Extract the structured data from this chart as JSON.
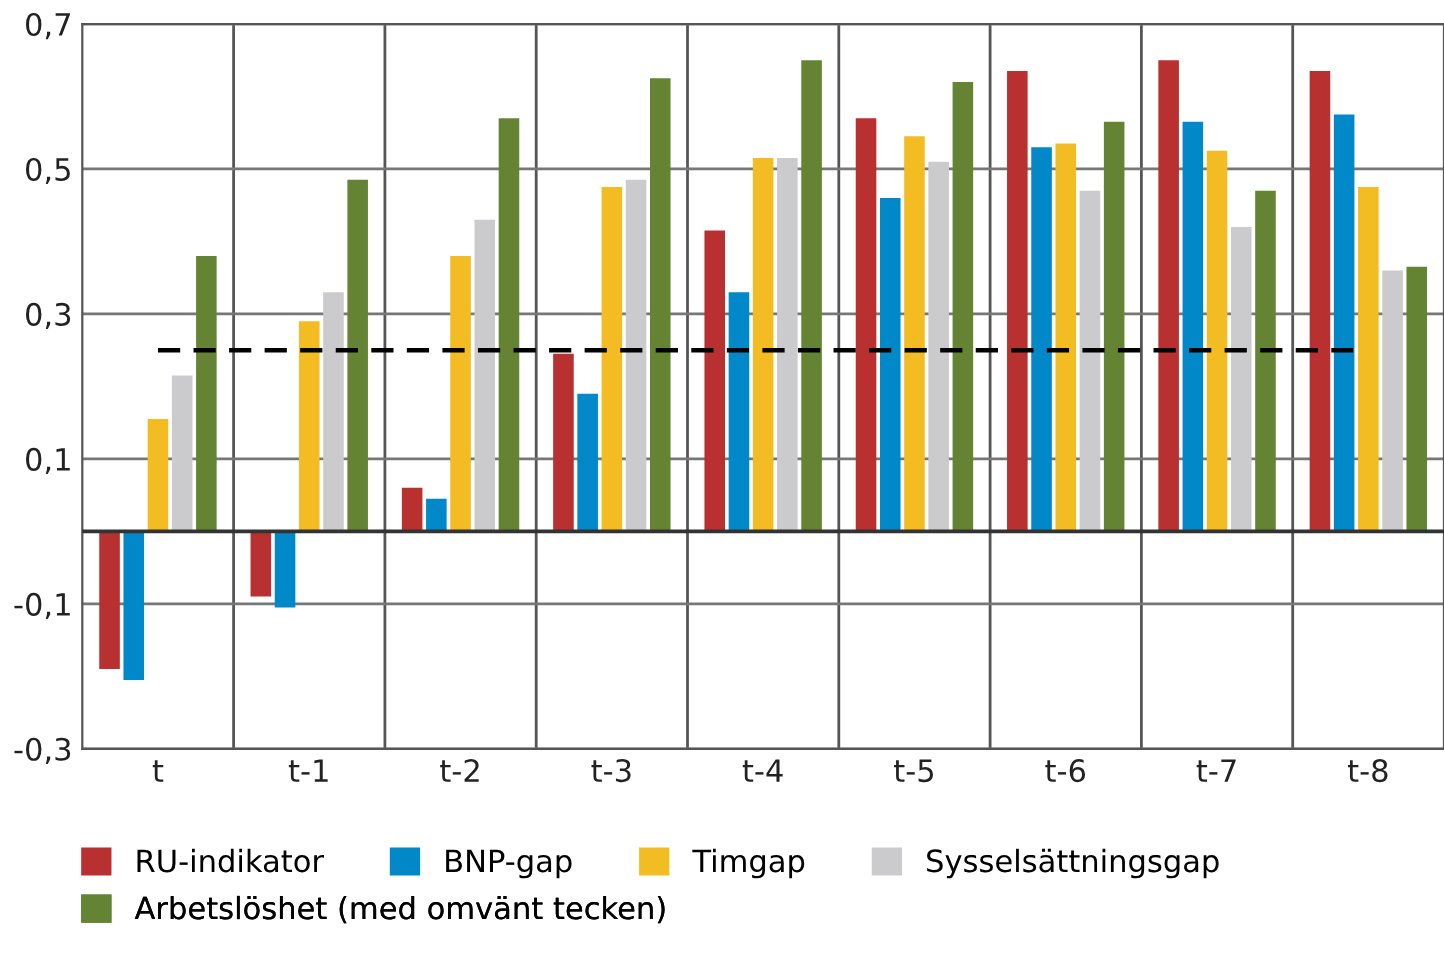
{
  "chart_data": {
    "type": "bar",
    "categories": [
      "t",
      "t-1",
      "t-2",
      "t-3",
      "t-4",
      "t-5",
      "t-6",
      "t-7",
      "t-8"
    ],
    "series": [
      {
        "name": "RU-indikator",
        "color": "#b83030",
        "values": [
          -0.19,
          -0.09,
          0.06,
          0.245,
          0.415,
          0.57,
          0.635,
          0.65,
          0.635
        ]
      },
      {
        "name": "BNP-gap",
        "color": "#0088c8",
        "values": [
          -0.205,
          -0.105,
          0.045,
          0.19,
          0.33,
          0.46,
          0.53,
          0.565,
          0.575
        ]
      },
      {
        "name": "Timgap",
        "color": "#f3bc22",
        "values": [
          0.155,
          0.29,
          0.38,
          0.475,
          0.515,
          0.545,
          0.535,
          0.525,
          0.475
        ]
      },
      {
        "name": "Sysselsättningsgap",
        "color": "#cbcbcd",
        "values": [
          0.215,
          0.33,
          0.43,
          0.485,
          0.515,
          0.51,
          0.47,
          0.42,
          0.36
        ]
      },
      {
        "name": "Arbetslöshet (med omvänt tecken)",
        "color": "#648434",
        "values": [
          0.38,
          0.485,
          0.57,
          0.625,
          0.65,
          0.62,
          0.565,
          0.47,
          0.365
        ]
      }
    ],
    "ylim": [
      -0.3,
      0.7
    ],
    "yticks": [
      {
        "value": -0.3,
        "label": "-0,3"
      },
      {
        "value": -0.1,
        "label": "-0,1"
      },
      {
        "value": 0.1,
        "label": "0,1"
      },
      {
        "value": 0.3,
        "label": "0,3"
      },
      {
        "value": 0.5,
        "label": "0,5"
      },
      {
        "value": 0.7,
        "label": "0,7"
      }
    ],
    "ref_lines": [
      {
        "axis": "y",
        "value": 0.25,
        "color": "#000000",
        "line_style": "dashed"
      }
    ],
    "grid": true,
    "legend": "bottom"
  }
}
